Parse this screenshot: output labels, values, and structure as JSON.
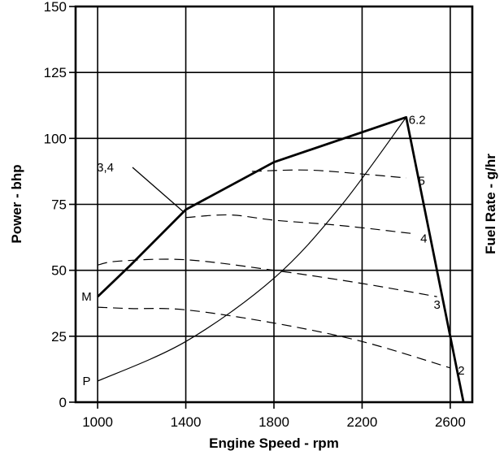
{
  "chart_data": {
    "type": "line",
    "title": "",
    "xlabel": "Engine Speed - rpm",
    "ylabel": "Power - bhp",
    "y2label": "Fuel Rate - g/hr",
    "xlim": [
      900,
      2700
    ],
    "ylim": [
      0,
      150
    ],
    "x_ticks": [
      1000,
      1400,
      1800,
      2200,
      2600
    ],
    "y_ticks": [
      0,
      25,
      50,
      75,
      100,
      125,
      150
    ],
    "grid": true,
    "series": [
      {
        "key": "max",
        "style": "thick-solid",
        "x": [
          1000,
          1150,
          1400,
          1800,
          2400,
          2660
        ],
        "y": [
          40,
          52,
          73,
          91,
          108,
          0
        ]
      },
      {
        "key": "P",
        "style": "thin-solid",
        "x": [
          1000,
          1400,
          1800,
          2100,
          2400
        ],
        "y": [
          8,
          23,
          47,
          74,
          108
        ]
      },
      {
        "key": "5",
        "style": "dashed",
        "x": [
          1700,
          1950,
          2200,
          2400
        ],
        "y": [
          87.5,
          88,
          86.5,
          85
        ]
      },
      {
        "key": "4",
        "style": "dashed",
        "x": [
          1400,
          1600,
          1800,
          2100,
          2420
        ],
        "y": [
          70,
          71,
          69,
          67,
          64
        ]
      },
      {
        "key": "3",
        "style": "dashed",
        "x": [
          1000,
          1100,
          1400,
          1800,
          2200,
          2540
        ],
        "y": [
          52,
          53.5,
          54,
          50,
          45,
          40
        ]
      },
      {
        "key": "2",
        "style": "dashed",
        "x": [
          1000,
          1150,
          1400,
          1800,
          2200,
          2600
        ],
        "y": [
          36,
          35.5,
          35,
          30,
          23,
          13
        ]
      }
    ],
    "annotations": [
      {
        "text": "M",
        "x": 950,
        "y": 40
      },
      {
        "text": "P",
        "x": 950,
        "y": 8
      },
      {
        "text": "6.2",
        "x": 2450,
        "y": 107
      },
      {
        "text": "3,4",
        "x": 1035,
        "y": 89
      },
      {
        "text": "5",
        "x": 2470,
        "y": 84
      },
      {
        "text": "4",
        "x": 2480,
        "y": 62
      },
      {
        "text": "3",
        "x": 2540,
        "y": 37
      },
      {
        "text": "2",
        "x": 2650,
        "y": 12
      }
    ]
  }
}
